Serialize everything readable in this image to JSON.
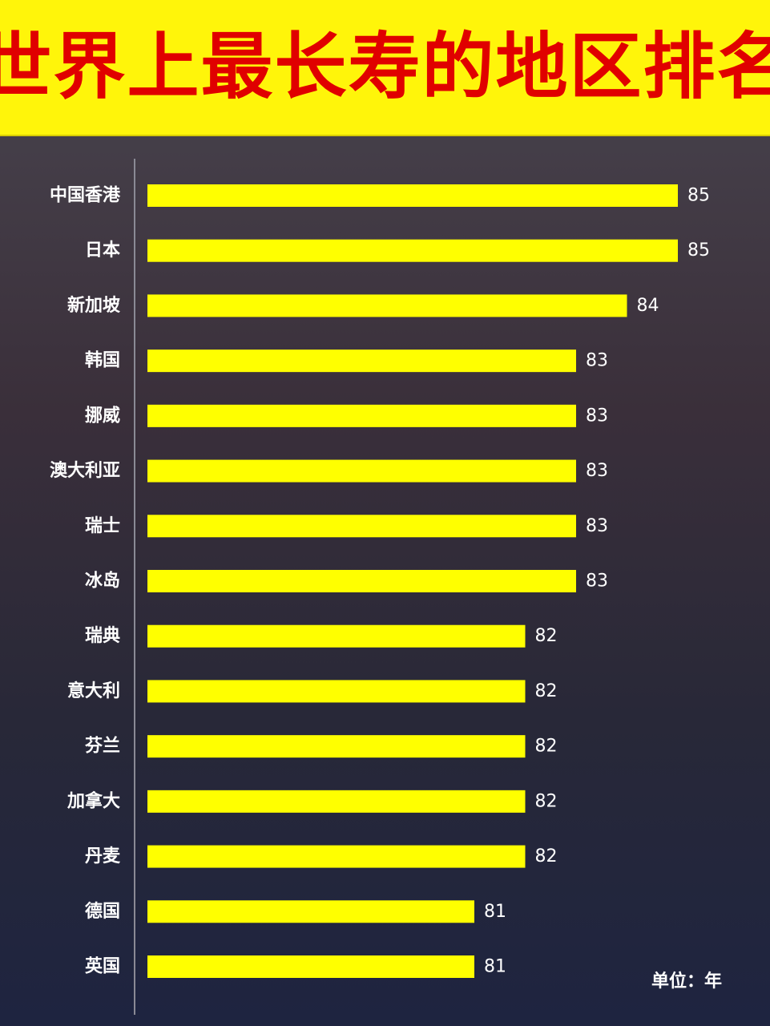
{
  "title": "世界上最长寿的地区排名",
  "unit_label": "单位：年",
  "colors": {
    "bar": "#ffff00",
    "title_band": "#fff50a",
    "title_text": "#e00000",
    "text": "#ffffff",
    "axis": "#8a8a95"
  },
  "chart_data": {
    "type": "bar",
    "orientation": "horizontal",
    "categories": [
      "中国香港",
      "日本",
      "新加坡",
      "韩国",
      "挪威",
      "澳大利亚",
      "瑞士",
      "冰岛",
      "瑞典",
      "意大利",
      "芬兰",
      "加拿大",
      "丹麦",
      "德国",
      "英国"
    ],
    "values": [
      85,
      85,
      84,
      83,
      83,
      83,
      83,
      83,
      82,
      82,
      82,
      82,
      82,
      81,
      81
    ],
    "title": "世界上最长寿的地区排名",
    "unit": "单位：年",
    "data_labels": true,
    "grid": false
  }
}
